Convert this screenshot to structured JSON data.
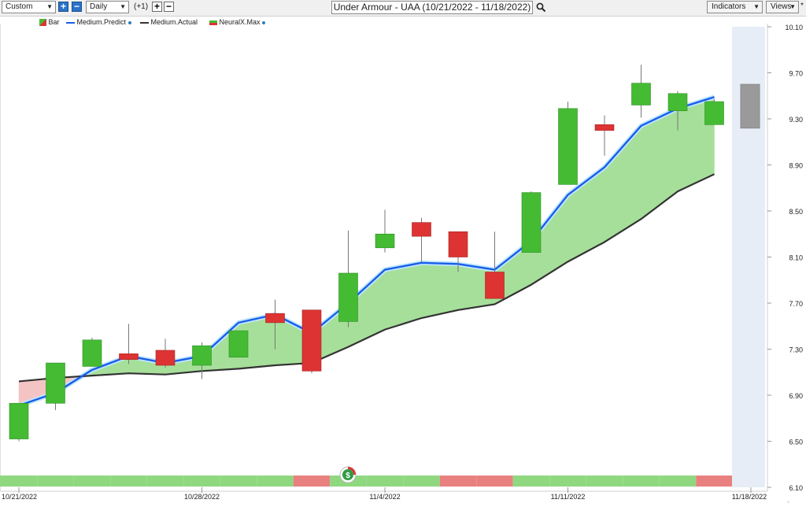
{
  "toolbar": {
    "range_select": "Custom",
    "interval_select": "Daily",
    "step_label": "(+1)",
    "chart_title": "Under Armour - UAA (10/21/2022 - 11/18/2022)",
    "indicators_label": "Indicators",
    "views_label": "Views",
    "views_mark": "*"
  },
  "legend": {
    "bar": "Bar",
    "predict": "Medium.Predict",
    "actual": "Medium.Actual",
    "neural": "NeuralX.Max"
  },
  "colors": {
    "up": "#44bb33",
    "down": "#dd3333",
    "predict": "#1a5ee8",
    "actual": "#333333",
    "fill_up": "#a6df9a",
    "fill_down": "#f4c4c4",
    "future_band": "#e6edf6"
  },
  "chart_data": {
    "type": "candlestick",
    "y_ticks": [
      "10.10",
      "9.70",
      "9.30",
      "8.90",
      "8.50",
      "8.10",
      "7.70",
      "7.30",
      "6.90",
      "6.50",
      "6.10"
    ],
    "ylim": [
      6.1,
      10.1
    ],
    "x_ticks": [
      {
        "label": "10/21/2022",
        "index": 0
      },
      {
        "label": "10/28/2022",
        "index": 5
      },
      {
        "label": "11/4/2022",
        "index": 10
      },
      {
        "label": "11/11/2022",
        "index": 15
      },
      {
        "label": "11/18/2022",
        "index": 20
      }
    ],
    "candles": [
      {
        "o": 6.52,
        "c": 6.83,
        "h": 6.83,
        "l": 6.5
      },
      {
        "o": 6.83,
        "c": 7.18,
        "h": 7.18,
        "l": 6.77
      },
      {
        "o": 7.15,
        "c": 7.38,
        "h": 7.4,
        "l": 7.15
      },
      {
        "o": 7.26,
        "c": 7.21,
        "h": 7.52,
        "l": 7.17
      },
      {
        "o": 7.29,
        "c": 7.16,
        "h": 7.39,
        "l": 7.14
      },
      {
        "o": 7.16,
        "c": 7.33,
        "h": 7.36,
        "l": 7.04
      },
      {
        "o": 7.23,
        "c": 7.46,
        "h": 7.46,
        "l": 7.23
      },
      {
        "o": 7.61,
        "c": 7.53,
        "h": 7.73,
        "l": 7.3
      },
      {
        "o": 7.64,
        "c": 7.11,
        "h": 7.64,
        "l": 7.09
      },
      {
        "o": 7.54,
        "c": 7.96,
        "h": 8.33,
        "l": 7.49
      },
      {
        "o": 8.18,
        "c": 8.3,
        "h": 8.51,
        "l": 8.14
      },
      {
        "o": 8.4,
        "c": 8.28,
        "h": 8.44,
        "l": 8.06
      },
      {
        "o": 8.32,
        "c": 8.1,
        "h": 8.32,
        "l": 7.97
      },
      {
        "o": 7.97,
        "c": 7.74,
        "h": 8.32,
        "l": 7.74
      },
      {
        "o": 8.14,
        "c": 8.66,
        "h": 8.67,
        "l": 8.14
      },
      {
        "o": 8.73,
        "c": 9.39,
        "h": 9.45,
        "l": 8.73
      },
      {
        "o": 9.25,
        "c": 9.2,
        "h": 9.33,
        "l": 8.98
      },
      {
        "o": 9.42,
        "c": 9.61,
        "h": 9.77,
        "l": 9.31
      },
      {
        "o": 9.37,
        "c": 9.52,
        "h": 9.54,
        "l": 9.2
      },
      {
        "o": 9.25,
        "c": 9.45,
        "h": 9.47,
        "l": 9.25
      }
    ],
    "forecast_box": {
      "low": 9.22,
      "high": 9.6
    },
    "series": [
      {
        "name": "Medium.Predict",
        "values": [
          6.81,
          6.92,
          7.12,
          7.24,
          7.18,
          7.24,
          7.53,
          7.6,
          7.44,
          7.7,
          7.99,
          8.05,
          8.04,
          7.99,
          8.24,
          8.64,
          8.88,
          9.24,
          9.39,
          9.49
        ]
      },
      {
        "name": "Medium.Actual",
        "values": [
          7.02,
          7.05,
          7.07,
          7.09,
          7.08,
          7.11,
          7.13,
          7.16,
          7.18,
          7.32,
          7.47,
          7.57,
          7.64,
          7.69,
          7.86,
          8.06,
          8.23,
          8.43,
          8.67,
          8.82
        ]
      }
    ],
    "signal_strip": [
      "up",
      "up",
      "up",
      "up",
      "up",
      "up",
      "up",
      "up",
      "down",
      "up",
      "up",
      "up",
      "down",
      "down",
      "up",
      "up",
      "up",
      "up",
      "up",
      "down"
    ]
  }
}
